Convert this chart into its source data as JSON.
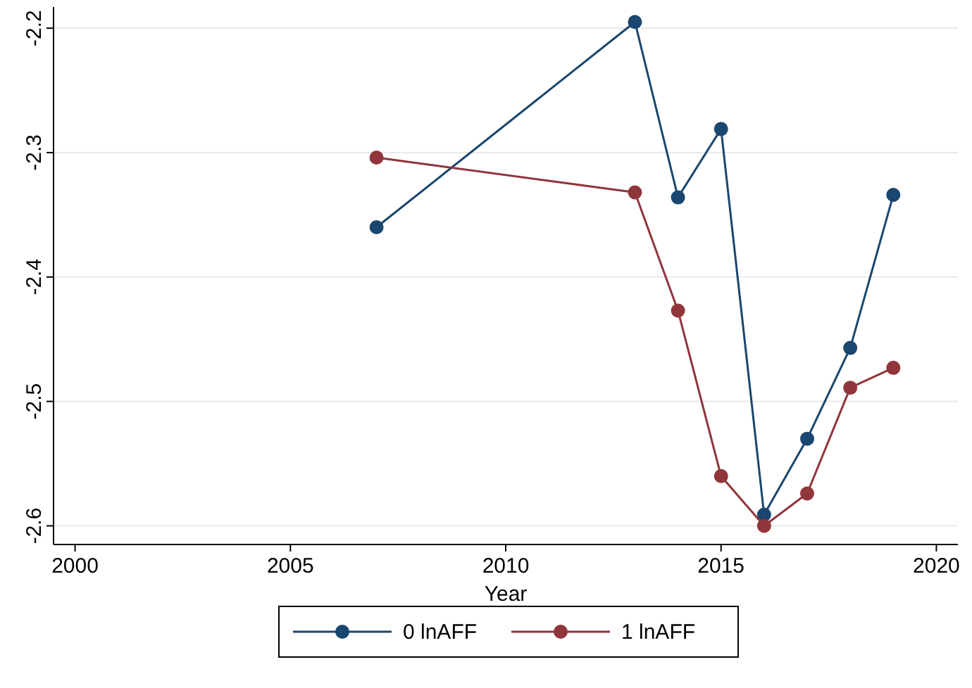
{
  "chart_data": {
    "type": "line",
    "xlabel": "Year",
    "x": [
      2007,
      2013,
      2014,
      2015,
      2016,
      2017,
      2018,
      2019
    ],
    "series": [
      {
        "name": "0 lnAFF",
        "color": "#1a476f",
        "values": [
          -2.36,
          -2.195,
          -2.336,
          -2.281,
          -2.591,
          -2.53,
          -2.457,
          -2.334
        ]
      },
      {
        "name": "1 lnAFF",
        "color": "#90353b",
        "values": [
          -2.304,
          -2.332,
          -2.427,
          -2.56,
          -2.6,
          -2.574,
          -2.489,
          -2.473
        ]
      }
    ],
    "xlim": [
      1999.5,
      2020.5
    ],
    "xticks": [
      2000,
      2005,
      2010,
      2015,
      2020
    ],
    "ylim": [
      -2.615,
      -2.183
    ],
    "yticks": [
      -2.2,
      -2.3,
      -2.4,
      -2.5,
      -2.6
    ],
    "grid": "y",
    "legend": "bottom",
    "marker": "circle",
    "line_style": "solid"
  }
}
